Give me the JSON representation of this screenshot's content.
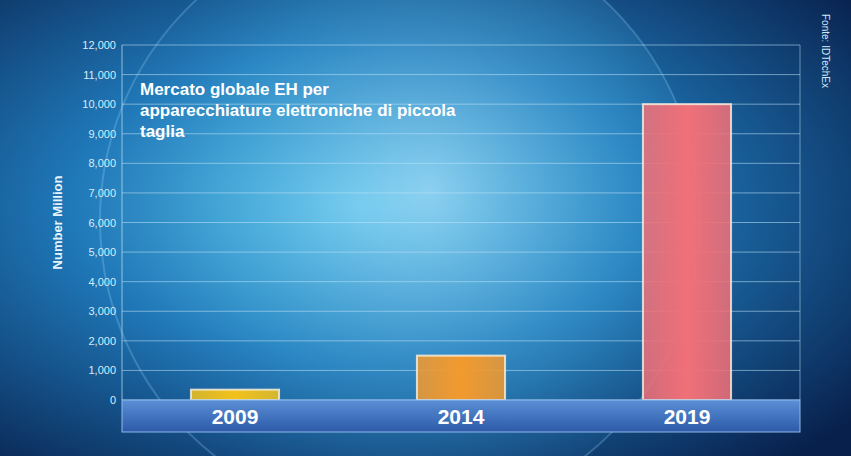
{
  "chart_data": {
    "type": "bar",
    "title": "Mercato globale EH per apparecchiature elettroniche di piccola taglia",
    "y_label": "Number Million",
    "annotations": [
      "Fonte: IDTechEx"
    ],
    "categories": [
      "2009",
      "2014",
      "2019"
    ],
    "values": [
      350,
      1500,
      10000
    ],
    "colors": [
      "#f2c21b",
      "#f29a2e",
      "#f07078"
    ],
    "ylim": [
      0,
      12000
    ],
    "yticks": [
      0,
      {
        "value": 1000,
        "label": "1,000"
      },
      {
        "value": 2000,
        "label": "2,000"
      },
      {
        "value": 3000,
        "label": "3,000"
      },
      {
        "value": 4000,
        "label": "4,000"
      },
      {
        "value": 5000,
        "label": "5,000"
      },
      {
        "value": 6000,
        "label": "6,000"
      },
      {
        "value": 7000,
        "label": "7,000"
      },
      {
        "value": 8000,
        "label": "8,000"
      },
      {
        "value": 9000,
        "label": "9,000"
      },
      {
        "value": 10000,
        "label": "10,000"
      },
      {
        "value": 11000,
        "label": "11,000"
      },
      {
        "value": 12000,
        "label": "12,000"
      }
    ],
    "grid": true
  }
}
